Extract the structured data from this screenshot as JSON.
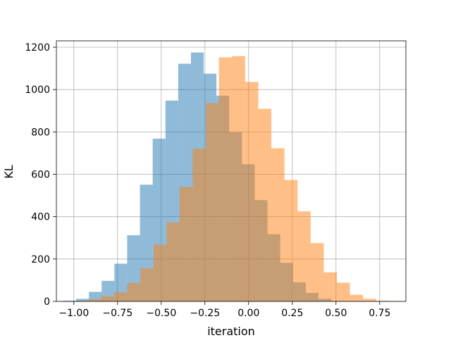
{
  "chart_data": {
    "type": "bar",
    "xlabel": "iteration",
    "ylabel": "KL",
    "xlim": [
      -1.1,
      0.9
    ],
    "ylim": [
      0,
      1230
    ],
    "grid": true,
    "x_ticks": [
      "−1.00",
      "−0.75",
      "−0.50",
      "−0.25",
      "0.00",
      "0.25",
      "0.50",
      "0.75"
    ],
    "x_tick_values": [
      -1.0,
      -0.75,
      -0.5,
      -0.25,
      0.0,
      0.25,
      0.5,
      0.75
    ],
    "y_ticks": [
      "0",
      "200",
      "400",
      "600",
      "800",
      "1000",
      "1200"
    ],
    "y_tick_values": [
      0,
      200,
      400,
      600,
      800,
      1000,
      1200
    ],
    "series": [
      {
        "color": "#1f77b4",
        "opacity": 0.5,
        "bin_edges": [
          -1.06,
          -0.987,
          -0.914,
          -0.841,
          -0.768,
          -0.695,
          -0.622,
          -0.549,
          -0.476,
          -0.403,
          -0.33,
          -0.257,
          -0.184,
          -0.111,
          -0.038,
          0.035,
          0.108,
          0.181,
          0.254,
          0.327,
          0.4,
          0.473,
          0.546,
          0.619
        ],
        "counts": [
          3,
          12,
          45,
          97,
          178,
          312,
          551,
          768,
          948,
          1122,
          1175,
          1075,
          971,
          799,
          647,
          478,
          317,
          182,
          90,
          40,
          12,
          2,
          1
        ]
      },
      {
        "color": "#ff7f0e",
        "opacity": 0.5,
        "bin_edges": [
          -0.995,
          -0.92,
          -0.845,
          -0.77,
          -0.695,
          -0.62,
          -0.545,
          -0.47,
          -0.395,
          -0.32,
          -0.245,
          -0.17,
          -0.095,
          -0.02,
          0.055,
          0.13,
          0.205,
          0.28,
          0.355,
          0.43,
          0.505,
          0.58,
          0.655,
          0.73,
          0.805,
          0.88
        ],
        "counts": [
          3,
          10,
          25,
          43,
          87,
          156,
          268,
          373,
          540,
          721,
          935,
          1152,
          1158,
          1036,
          909,
          723,
          573,
          425,
          275,
          137,
          88,
          31,
          12,
          3,
          1
        ]
      }
    ]
  }
}
